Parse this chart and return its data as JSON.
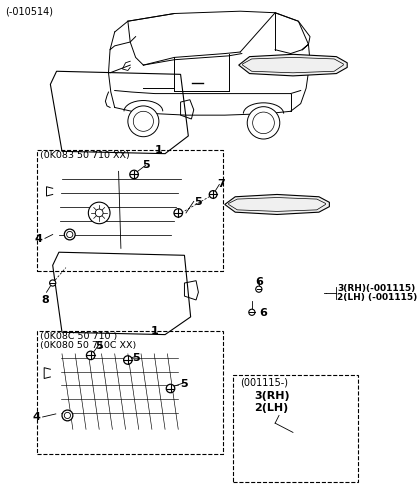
{
  "top_label": "(-010514)",
  "bg_color": "#ffffff",
  "box1_label": "(0K083 50 710 XX)",
  "box2_label1": "(0K08C 50 710 )",
  "box2_label2": "(0K080 50 710C XX)",
  "box3_label": "(001115-)",
  "label_3rh_old": "3(RH)(-001115)",
  "label_2lh_old": "2(LH) (-001115)",
  "label_3rh_new": "3(RH)",
  "label_2lh_new": "2(LH)",
  "label_1": "1",
  "label_4": "4",
  "label_5": "5",
  "label_6": "6",
  "label_7": "7",
  "label_8": "8"
}
